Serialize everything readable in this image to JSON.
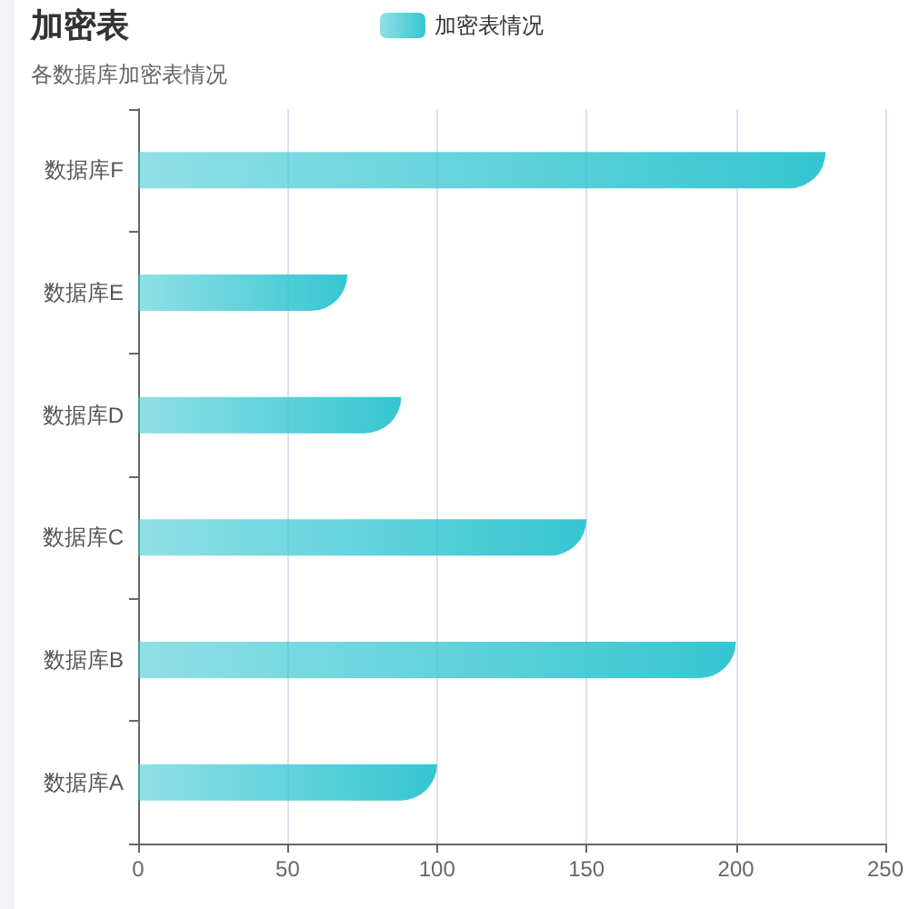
{
  "chart_data": {
    "type": "bar",
    "title": "加密表",
    "subtitle": "各数据库加密表情况",
    "orientation": "horizontal",
    "categories": [
      "数据库F",
      "数据库E",
      "数据库D",
      "数据库C",
      "数据库B",
      "数据库A"
    ],
    "series": [
      {
        "name": "加密表情况",
        "color": "#35c6d1",
        "values": [
          230,
          70,
          88,
          150,
          200,
          100
        ]
      }
    ],
    "xlim": [
      0,
      250
    ],
    "xticks": [
      0,
      50,
      100,
      150,
      200,
      250
    ],
    "grid": "x",
    "legend": "top"
  }
}
